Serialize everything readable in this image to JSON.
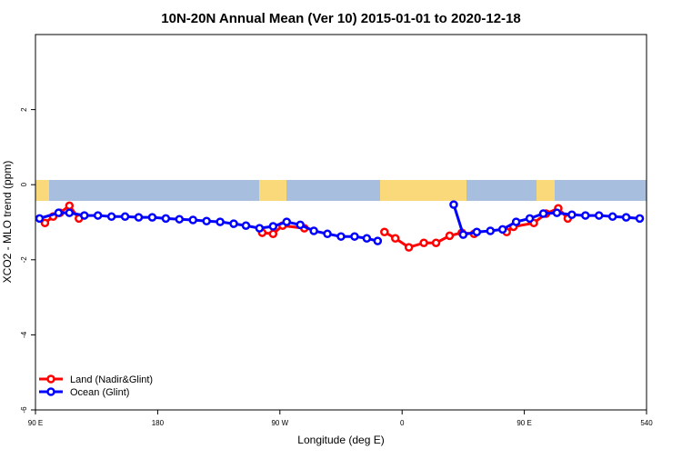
{
  "chart_data": {
    "type": "line",
    "title": "10N-20N Annual Mean (Ver 10)   2015-01-01 to 2020-12-18",
    "x_label": "Longitude (deg E)",
    "y_label": "XCO2 - MLO trend (ppm)",
    "xlim": [
      90,
      540
    ],
    "ylim": [
      -6,
      4
    ],
    "xticks": [
      {
        "value": 90,
        "label": "90 E"
      },
      180,
      {
        "value": 270,
        "label": "90 W"
      },
      {
        "value": 360,
        "label": "0"
      },
      {
        "value": 450,
        "label": "90 E"
      },
      540
    ],
    "yticks": [
      -6,
      -4,
      -2,
      0,
      2
    ],
    "legend": "bottom-left",
    "series": [
      {
        "name": "Land (Nadir&Glint)",
        "color": "#ff0000",
        "x": [
          97,
          103,
          108,
          115,
          122,
          190,
          257,
          265,
          272,
          288,
          320,
          347,
          355,
          365,
          376,
          385,
          395,
          404,
          413,
          425,
          437,
          442,
          457,
          466,
          475,
          482
        ],
        "values": [
          -1.02,
          -0.85,
          -0.75,
          -0.56,
          -0.9,
          null,
          -1.28,
          -1.31,
          -1.09,
          -1.16,
          null,
          -1.26,
          -1.43,
          -1.67,
          -1.55,
          -1.55,
          -1.36,
          -1.28,
          -1.31,
          null,
          -1.26,
          -1.12,
          -1.02,
          -0.77,
          -0.63,
          -0.9
        ]
      },
      {
        "name": "Ocean (Glint)",
        "color": "#0000ff",
        "x": [
          93,
          107,
          115,
          126,
          136,
          146,
          156,
          166,
          176,
          186,
          196,
          206,
          216,
          226,
          236,
          245,
          255,
          265,
          275,
          285,
          295,
          305,
          315,
          325,
          334,
          342,
          370,
          398,
          405,
          415,
          425,
          434,
          444,
          454,
          464,
          474,
          485,
          495,
          505,
          515,
          525,
          535
        ],
        "values": [
          -0.9,
          -0.75,
          -0.75,
          -0.82,
          -0.82,
          -0.85,
          -0.85,
          -0.87,
          -0.87,
          -0.9,
          -0.92,
          -0.94,
          -0.97,
          -0.99,
          -1.04,
          -1.09,
          -1.16,
          -1.11,
          -0.99,
          -1.07,
          -1.23,
          -1.31,
          -1.38,
          -1.38,
          -1.43,
          -1.5,
          null,
          -0.53,
          -1.33,
          -1.26,
          -1.23,
          -1.19,
          -0.99,
          -0.9,
          -0.77,
          -0.75,
          -0.8,
          -0.82,
          -0.82,
          -0.85,
          -0.87,
          -0.9
        ]
      }
    ]
  }
}
